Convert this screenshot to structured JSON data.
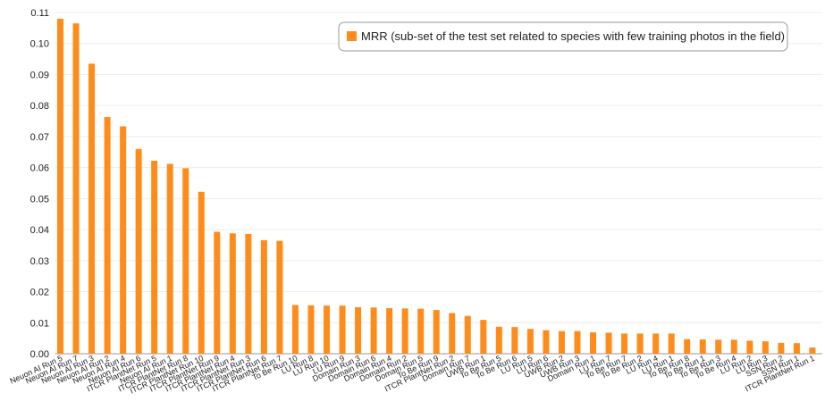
{
  "chart_data": {
    "type": "bar",
    "title": "",
    "xlabel": "",
    "ylabel": "",
    "ylim": [
      0,
      0.11
    ],
    "yticks": [
      0.0,
      0.01,
      0.02,
      0.03,
      0.04,
      0.05,
      0.06,
      0.07,
      0.08,
      0.09,
      0.1,
      0.11
    ],
    "ytick_labels": [
      "0.00",
      "0.01",
      "0.02",
      "0.03",
      "0.04",
      "0.05",
      "0.06",
      "0.07",
      "0.08",
      "0.09",
      "0.10",
      "0.11"
    ],
    "grid": true,
    "legend_position": "top-right",
    "categories": [
      "Neuon AI Run 5",
      "Neuon AI Run 7",
      "Neuon AI Run 3",
      "Neuon AI Run 2",
      "Neuon AI Run 4",
      "Neuon AI Run 6",
      "ITCR PlantNet Run 5",
      "Neuon AI Run 1",
      "ITCR PlantNet Run 8",
      "ITCR PlantNet Run 10",
      "ITCR PlantNet Run 9",
      "ITCR PlantNet Run 4",
      "ITCR PlantNet Run 3",
      "ITCR PlantNet Run 6",
      "ITCR PlantNet Run 7",
      "To Be Run 10",
      "LU Run 8",
      "LU Run 10",
      "LU Run 9",
      "Domain Run 3",
      "Domain Run 6",
      "Domain Run 4",
      "Domain Run 2",
      "Domain Run 5",
      "To Be Run 9",
      "ITCR PlantNet Run 2",
      "Domain Run 7",
      "UWB Run 1",
      "To Be Run 5",
      "To Be Run 6",
      "LU Run 5",
      "LU Run 6",
      "UWB Run 2",
      "UWB Run 3",
      "Domain Run 1",
      "LU Run 7",
      "To Be Run 7",
      "To Be Run 2",
      "LU Run 4",
      "LU Run 1",
      "To Be Run 8",
      "To Be Run 1",
      "To Be Run 3",
      "To Be Run 4",
      "LU Run 2",
      "LU Run 3",
      "SSN Run 2",
      "SSN Run 1",
      "ITCR PlantNet Run 1"
    ],
    "series": [
      {
        "name": "MRR (sub-set of the test set related to species with few training photos in the field)",
        "color": "#ff8c1a",
        "values": [
          0.108,
          0.1065,
          0.0935,
          0.0763,
          0.0733,
          0.066,
          0.0622,
          0.0612,
          0.0598,
          0.0522,
          0.0393,
          0.0388,
          0.0386,
          0.0366,
          0.0364,
          0.0157,
          0.0156,
          0.0155,
          0.0155,
          0.015,
          0.0149,
          0.0147,
          0.0146,
          0.0145,
          0.0141,
          0.0131,
          0.0122,
          0.0109,
          0.0087,
          0.0086,
          0.008,
          0.0076,
          0.0073,
          0.0073,
          0.0069,
          0.0068,
          0.0065,
          0.0065,
          0.0065,
          0.0065,
          0.0047,
          0.0046,
          0.0045,
          0.0045,
          0.0042,
          0.004,
          0.0035,
          0.0034,
          0.002
        ]
      }
    ]
  }
}
